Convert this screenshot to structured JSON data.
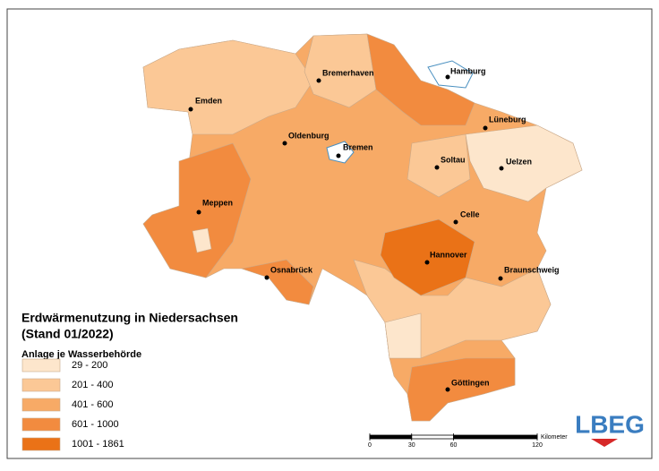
{
  "title": [
    "Erdwärmenutzung in Niedersachsen",
    "(Stand 01/2022)"
  ],
  "legend": {
    "title": "Anlage je Wasserbehörde",
    "items": [
      {
        "label": "29 - 200",
        "color": "#fde6cc"
      },
      {
        "label": "201 - 400",
        "color": "#fbc896"
      },
      {
        "label": "401 - 600",
        "color": "#f7aa66"
      },
      {
        "label": "601 - 1000",
        "color": "#f28b3f"
      },
      {
        "label": "1001 - 1861",
        "color": "#ea7217"
      }
    ]
  },
  "cities": [
    "Bremerhaven",
    "Hamburg",
    "Emden",
    "Lüneburg",
    "Oldenburg",
    "Bremen",
    "Soltau",
    "Uelzen",
    "Meppen",
    "Celle",
    "Hannover",
    "Osnabrück",
    "Braunschweig",
    "Göttingen"
  ],
  "scale": {
    "ticks": [
      0,
      30,
      60,
      120
    ],
    "unit": "Kilometer"
  },
  "logo": "LBEG"
}
